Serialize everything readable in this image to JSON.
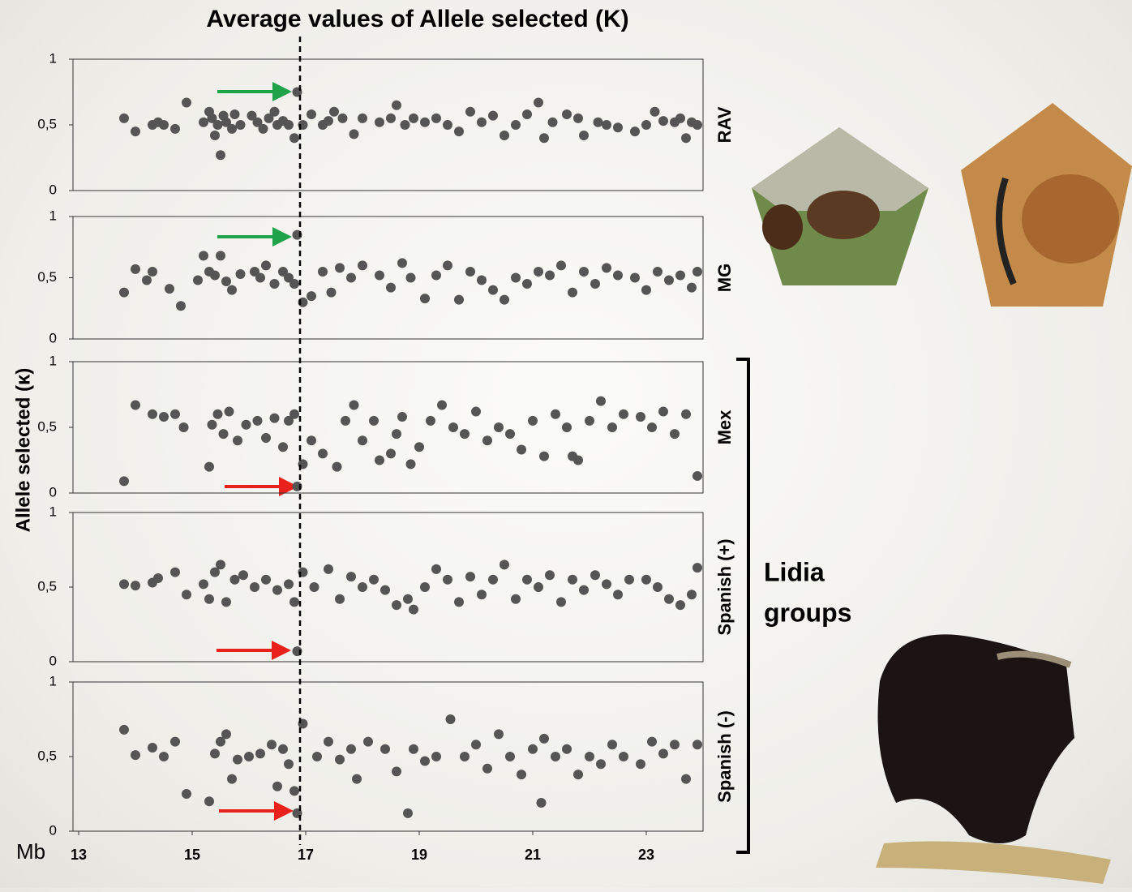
{
  "title": "Average  values of Allele selected (K)",
  "ylabel": "Allele selected (κ)",
  "xlabel": "Mb",
  "group_label_1": "Lidia",
  "group_label_2": "groups",
  "reference_line_x": 16.9,
  "chart_data": [
    {
      "type": "scatter",
      "name": "RAV",
      "color": "#555555",
      "xlim": [
        12.9,
        24.0
      ],
      "ylim": [
        0,
        1
      ],
      "yticks": [
        0,
        {
          "value": 0.5,
          "label": "0,5"
        },
        1
      ],
      "x": [
        13.8,
        14.0,
        14.3,
        14.4,
        14.5,
        14.7,
        14.9,
        15.2,
        15.3,
        15.35,
        15.4,
        15.45,
        15.5,
        15.55,
        15.6,
        15.7,
        15.75,
        15.85,
        16.05,
        16.15,
        16.25,
        16.35,
        16.45,
        16.5,
        16.6,
        16.7,
        16.8,
        16.85,
        16.95,
        17.1,
        17.3,
        17.4,
        17.5,
        17.65,
        17.85,
        18.0,
        18.3,
        18.5,
        18.6,
        18.75,
        18.9,
        19.1,
        19.3,
        19.5,
        19.7,
        19.9,
        20.1,
        20.3,
        20.5,
        20.7,
        20.9,
        21.1,
        21.2,
        21.35,
        21.6,
        21.8,
        21.9,
        22.15,
        22.3,
        22.5,
        22.8,
        23.0,
        23.15,
        23.3,
        23.5,
        23.6,
        23.7,
        23.8,
        23.9
      ],
      "values": [
        0.55,
        0.45,
        0.5,
        0.52,
        0.5,
        0.47,
        0.67,
        0.52,
        0.6,
        0.55,
        0.42,
        0.5,
        0.27,
        0.57,
        0.52,
        0.47,
        0.58,
        0.5,
        0.57,
        0.52,
        0.47,
        0.55,
        0.6,
        0.5,
        0.53,
        0.5,
        0.4,
        0.75,
        0.5,
        0.58,
        0.5,
        0.53,
        0.6,
        0.55,
        0.43,
        0.55,
        0.52,
        0.55,
        0.65,
        0.5,
        0.55,
        0.52,
        0.55,
        0.5,
        0.45,
        0.6,
        0.52,
        0.57,
        0.42,
        0.5,
        0.58,
        0.67,
        0.4,
        0.52,
        0.58,
        0.55,
        0.42,
        0.52,
        0.5,
        0.48,
        0.45,
        0.5,
        0.6,
        0.53,
        0.52,
        0.55,
        0.4,
        0.52,
        0.5
      ]
    },
    {
      "type": "scatter",
      "name": "MG",
      "color": "#555555",
      "xlim": [
        12.9,
        24.0
      ],
      "ylim": [
        0,
        1
      ],
      "yticks": [
        0,
        {
          "value": 0.5,
          "label": "0,5"
        },
        1
      ],
      "x": [
        13.8,
        14.0,
        14.2,
        14.3,
        14.6,
        14.8,
        15.1,
        15.2,
        15.3,
        15.4,
        15.5,
        15.6,
        15.7,
        15.85,
        16.1,
        16.2,
        16.3,
        16.45,
        16.6,
        16.7,
        16.8,
        16.85,
        16.95,
        17.1,
        17.3,
        17.45,
        17.6,
        17.8,
        18.0,
        18.3,
        18.5,
        18.7,
        18.85,
        19.1,
        19.3,
        19.5,
        19.7,
        19.9,
        20.1,
        20.3,
        20.5,
        20.7,
        20.9,
        21.1,
        21.3,
        21.5,
        21.7,
        21.9,
        22.1,
        22.3,
        22.5,
        22.8,
        23.0,
        23.2,
        23.4,
        23.6,
        23.8,
        23.9
      ],
      "values": [
        0.38,
        0.57,
        0.48,
        0.55,
        0.41,
        0.27,
        0.48,
        0.68,
        0.55,
        0.52,
        0.68,
        0.47,
        0.4,
        0.53,
        0.55,
        0.5,
        0.6,
        0.45,
        0.55,
        0.5,
        0.45,
        0.85,
        0.3,
        0.35,
        0.55,
        0.38,
        0.58,
        0.5,
        0.6,
        0.52,
        0.42,
        0.62,
        0.5,
        0.33,
        0.52,
        0.6,
        0.32,
        0.55,
        0.48,
        0.4,
        0.32,
        0.5,
        0.45,
        0.55,
        0.52,
        0.6,
        0.38,
        0.55,
        0.45,
        0.58,
        0.52,
        0.5,
        0.4,
        0.55,
        0.48,
        0.52,
        0.42,
        0.55
      ]
    },
    {
      "type": "scatter",
      "name": "Mex",
      "color": "#555555",
      "xlim": [
        12.9,
        24.0
      ],
      "ylim": [
        0,
        1
      ],
      "yticks": [
        0,
        {
          "value": 0.5,
          "label": "0,5"
        },
        1
      ],
      "x": [
        13.8,
        14.0,
        14.3,
        14.5,
        14.7,
        14.85,
        15.3,
        15.35,
        15.45,
        15.55,
        15.65,
        15.8,
        15.95,
        16.15,
        16.3,
        16.45,
        16.6,
        16.7,
        16.8,
        16.85,
        16.95,
        17.1,
        17.3,
        17.55,
        17.7,
        17.85,
        18.0,
        18.2,
        18.3,
        18.5,
        18.6,
        18.7,
        18.85,
        19.0,
        19.2,
        19.4,
        19.6,
        19.8,
        20.0,
        20.2,
        20.4,
        20.6,
        20.8,
        21.0,
        21.2,
        21.4,
        21.6,
        21.7,
        21.8,
        22.0,
        22.2,
        22.4,
        22.6,
        22.9,
        23.1,
        23.3,
        23.5,
        23.7,
        23.9
      ],
      "values": [
        0.09,
        0.67,
        0.6,
        0.58,
        0.6,
        0.5,
        0.2,
        0.52,
        0.6,
        0.45,
        0.62,
        0.4,
        0.52,
        0.55,
        0.42,
        0.57,
        0.35,
        0.55,
        0.6,
        0.05,
        0.22,
        0.4,
        0.3,
        0.2,
        0.55,
        0.67,
        0.4,
        0.55,
        0.25,
        0.3,
        0.45,
        0.58,
        0.22,
        0.35,
        0.55,
        0.67,
        0.5,
        0.45,
        0.62,
        0.4,
        0.5,
        0.45,
        0.33,
        0.55,
        0.28,
        0.6,
        0.5,
        0.28,
        0.25,
        0.55,
        0.7,
        0.5,
        0.6,
        0.58,
        0.5,
        0.62,
        0.45,
        0.6,
        0.13
      ]
    },
    {
      "type": "scatter",
      "name": "Spanish (+)",
      "color": "#555555",
      "xlim": [
        12.9,
        24.0
      ],
      "ylim": [
        0,
        1
      ],
      "yticks": [
        0,
        {
          "value": 0.5,
          "label": "0,5"
        },
        1
      ],
      "x": [
        13.8,
        14.0,
        14.3,
        14.4,
        14.7,
        14.9,
        15.2,
        15.3,
        15.4,
        15.5,
        15.6,
        15.75,
        15.9,
        16.1,
        16.3,
        16.5,
        16.7,
        16.8,
        16.85,
        16.95,
        17.15,
        17.4,
        17.6,
        17.8,
        18.0,
        18.2,
        18.4,
        18.6,
        18.8,
        18.9,
        19.1,
        19.3,
        19.5,
        19.7,
        19.9,
        20.1,
        20.3,
        20.5,
        20.7,
        20.9,
        21.1,
        21.3,
        21.5,
        21.7,
        21.9,
        22.1,
        22.3,
        22.5,
        22.7,
        23.0,
        23.2,
        23.4,
        23.6,
        23.8,
        23.9
      ],
      "values": [
        0.52,
        0.51,
        0.53,
        0.56,
        0.6,
        0.45,
        0.52,
        0.42,
        0.6,
        0.65,
        0.4,
        0.55,
        0.58,
        0.5,
        0.55,
        0.48,
        0.52,
        0.4,
        0.07,
        0.6,
        0.5,
        0.62,
        0.42,
        0.57,
        0.5,
        0.55,
        0.48,
        0.38,
        0.42,
        0.35,
        0.5,
        0.62,
        0.55,
        0.4,
        0.57,
        0.45,
        0.55,
        0.65,
        0.42,
        0.55,
        0.5,
        0.58,
        0.4,
        0.55,
        0.48,
        0.58,
        0.52,
        0.45,
        0.55,
        0.55,
        0.5,
        0.42,
        0.38,
        0.45,
        0.63
      ]
    },
    {
      "type": "scatter",
      "name": "Spanish  (-)",
      "color": "#555555",
      "xlim": [
        12.9,
        24.0
      ],
      "ylim": [
        0,
        1
      ],
      "yticks": [
        0,
        {
          "value": 0.5,
          "label": "0,5"
        },
        1
      ],
      "xticks": [
        13,
        15,
        17,
        19,
        21,
        23
      ],
      "x": [
        13.8,
        14.0,
        14.3,
        14.5,
        14.7,
        14.9,
        15.3,
        15.4,
        15.5,
        15.6,
        15.7,
        15.8,
        16.0,
        16.2,
        16.4,
        16.5,
        16.6,
        16.7,
        16.8,
        16.85,
        16.95,
        17.2,
        17.4,
        17.6,
        17.8,
        17.9,
        18.1,
        18.4,
        18.6,
        18.8,
        18.9,
        19.1,
        19.3,
        19.55,
        19.8,
        20.0,
        20.2,
        20.4,
        20.6,
        20.8,
        21.0,
        21.15,
        21.2,
        21.4,
        21.6,
        21.8,
        22.0,
        22.2,
        22.4,
        22.6,
        22.9,
        23.1,
        23.3,
        23.5,
        23.7,
        23.9
      ],
      "values": [
        0.68,
        0.51,
        0.56,
        0.5,
        0.6,
        0.25,
        0.2,
        0.52,
        0.6,
        0.65,
        0.35,
        0.48,
        0.5,
        0.52,
        0.58,
        0.3,
        0.55,
        0.45,
        0.27,
        0.12,
        0.72,
        0.5,
        0.6,
        0.48,
        0.55,
        0.35,
        0.6,
        0.55,
        0.4,
        0.12,
        0.55,
        0.47,
        0.5,
        0.75,
        0.5,
        0.58,
        0.42,
        0.65,
        0.5,
        0.38,
        0.55,
        0.19,
        0.62,
        0.5,
        0.55,
        0.38,
        0.5,
        0.45,
        0.58,
        0.5,
        0.45,
        0.6,
        0.52,
        0.58,
        0.35,
        0.58
      ]
    }
  ]
}
